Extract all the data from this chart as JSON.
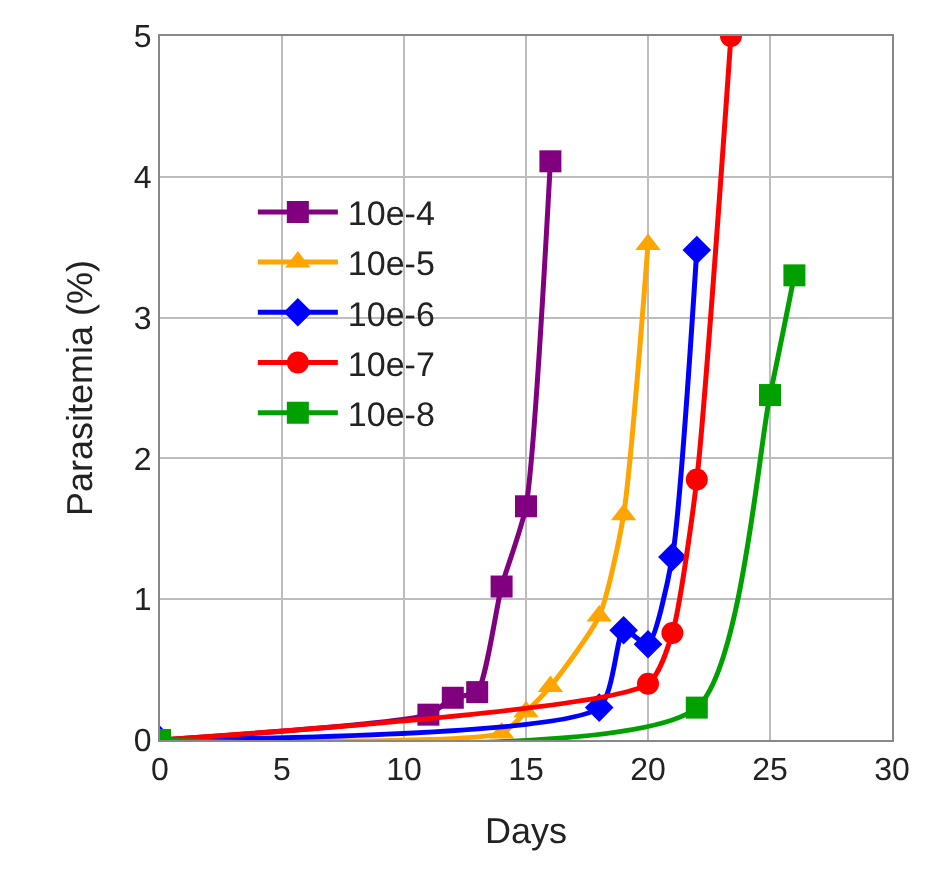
{
  "chart_data": {
    "type": "line",
    "xlabel": "Days",
    "ylabel": "Parasitemia (%)",
    "xlim": [
      0,
      30
    ],
    "xticks": [
      0,
      5,
      10,
      15,
      20,
      25,
      30
    ],
    "ylim": [
      0,
      5
    ],
    "yticks": [
      0,
      1,
      2,
      3,
      4,
      5
    ],
    "grid": true,
    "legend": "top left",
    "line_style": "solid",
    "series": [
      {
        "name": "10e-4",
        "color": "#800080",
        "marker": "square",
        "x": [
          0,
          11,
          12,
          13,
          14,
          15,
          16
        ],
        "values": [
          0,
          0.18,
          0.3,
          0.34,
          1.09,
          1.66,
          4.11
        ]
      },
      {
        "name": "10e-5",
        "color": "#ffa500",
        "marker": "triangle",
        "x": [
          0,
          14,
          15,
          16,
          18,
          19,
          20
        ],
        "values": [
          0,
          0.05,
          0.2,
          0.38,
          0.88,
          1.6,
          3.52
        ]
      },
      {
        "name": "10e-6",
        "color": "#0000ff",
        "marker": "diamond",
        "x": [
          0,
          18,
          19,
          20,
          21,
          22
        ],
        "values": [
          0,
          0.23,
          0.78,
          0.68,
          1.3,
          3.48
        ]
      },
      {
        "name": "10e-7",
        "color": "#ff0000",
        "marker": "circle",
        "x": [
          0,
          20,
          21,
          22,
          23.4
        ],
        "values": [
          0,
          0.4,
          0.76,
          1.85,
          5
        ]
      },
      {
        "name": "10e-8",
        "color": "#00a000",
        "marker": "square",
        "x": [
          0,
          22,
          25,
          26
        ],
        "values": [
          0,
          0.23,
          2.45,
          3.3
        ]
      }
    ]
  }
}
